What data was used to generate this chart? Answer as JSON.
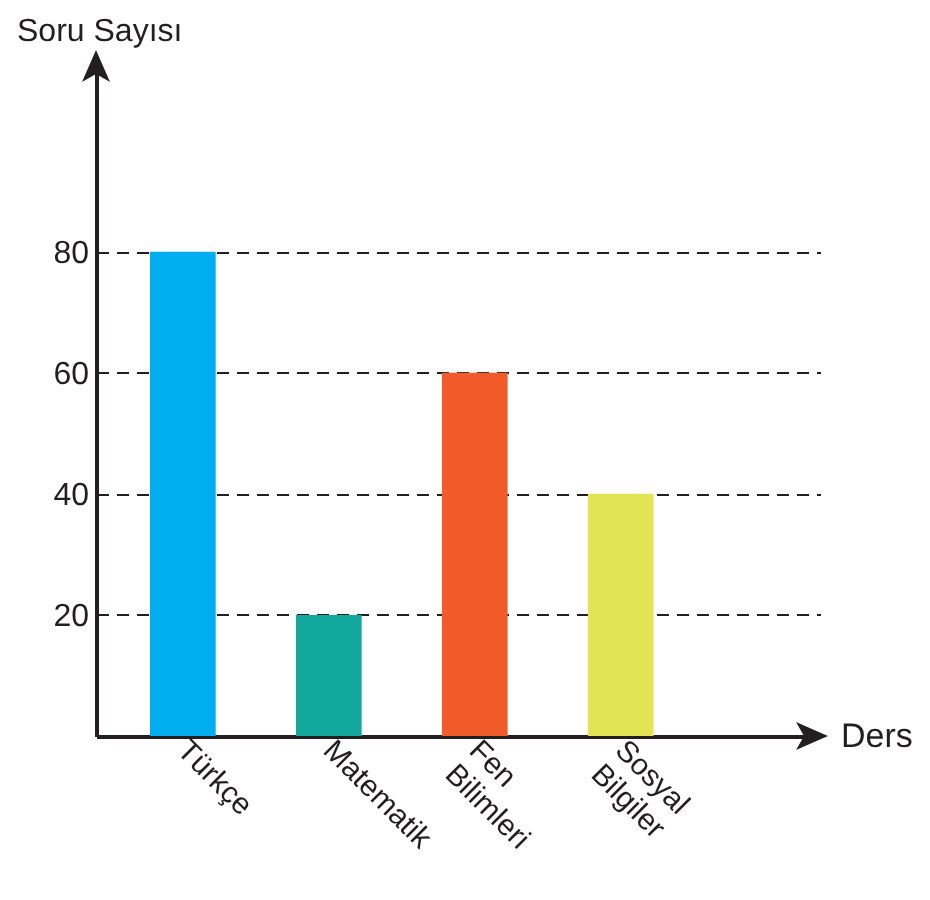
{
  "chart_data": {
    "type": "bar",
    "xlabel": "Ders",
    "ylabel": "Soru Sayısı",
    "categories": [
      "Türkçe",
      "Matematik",
      "Fen Bilimleri",
      "Sosyal Bilgiler"
    ],
    "values": [
      80,
      20,
      60,
      40
    ],
    "colors": [
      "#00aeef",
      "#13a89e",
      "#f15a29",
      "#e1e553"
    ],
    "ylim": [
      0,
      110
    ],
    "yticks": [
      20,
      40,
      60,
      80
    ],
    "grid": "y",
    "line_style": "dashed"
  }
}
